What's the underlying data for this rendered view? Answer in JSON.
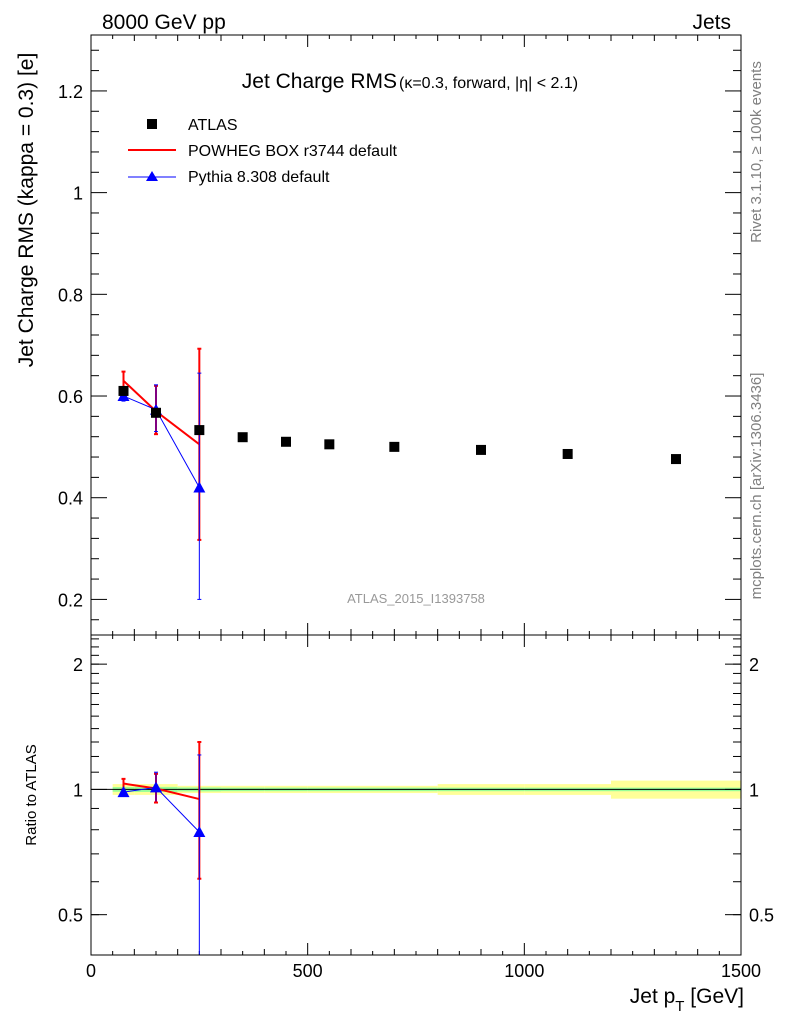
{
  "header": {
    "left": "8000 GeV pp",
    "right": "Jets"
  },
  "side_labels": {
    "rivet": "Rivet 3.1.10, ≥ 100k events",
    "mcplots": "mcplots.cern.ch [arXiv:1306.3436]"
  },
  "chart_data": [
    {
      "type": "scatter",
      "title": "Jet Charge RMS",
      "subtitle": "(κ=0.3, forward, |η| < 2.1)",
      "watermark": "ATLAS_2015_I1393758",
      "ylabel": "Jet Charge RMS (kappa = 0.3) [e]",
      "xlim": [
        0,
        1500
      ],
      "ylim": [
        0.13,
        1.31
      ],
      "yticks": [
        0.2,
        0.4,
        0.6,
        0.8,
        1,
        1.2
      ],
      "ytick_labels": [
        "0.2",
        "0.4",
        "0.6",
        "0.8",
        "1",
        "1.2"
      ],
      "legend_position": "top-left",
      "series": [
        {
          "name": "ATLAS",
          "color": "#000000",
          "marker": "square",
          "x": [
            75,
            150,
            250,
            350,
            450,
            550,
            700,
            900,
            1100,
            1350
          ],
          "y": [
            0.61,
            0.567,
            0.533,
            0.519,
            0.51,
            0.505,
            0.5,
            0.494,
            0.486,
            0.476
          ],
          "yerr": [
            0.008,
            0.008,
            0.006,
            0.005,
            0.005,
            0.005,
            0.005,
            0.005,
            0.005,
            0.005
          ]
        },
        {
          "name": "POWHEG BOX r3744 default",
          "color": "#ff0000",
          "marker": "line",
          "x": [
            75,
            150,
            250
          ],
          "y": [
            0.63,
            0.57,
            0.505
          ],
          "ylow": [
            0.612,
            0.525,
            0.317
          ],
          "yhigh": [
            0.648,
            0.62,
            0.693
          ],
          "xedges": [
            [
              50,
              100
            ],
            [
              100,
              200
            ],
            [
              200,
              250
            ]
          ]
        },
        {
          "name": "Pythia 8.308 default",
          "color": "#0000ff",
          "marker": "triangle",
          "x": [
            75,
            150,
            250
          ],
          "y": [
            0.6,
            0.573,
            0.42
          ],
          "ylow": [
            0.59,
            0.53,
            0.2
          ],
          "yhigh": [
            0.61,
            0.622,
            0.645
          ]
        }
      ]
    },
    {
      "type": "line",
      "ylabel": "Ratio to ATLAS",
      "xlabel": "Jet p_T [GeV]",
      "xlim": [
        0,
        1500
      ],
      "ylim": [
        0.4,
        2.35
      ],
      "xticks": [
        0,
        500,
        1000,
        1500
      ],
      "xtick_labels": [
        "0",
        "500",
        "1000",
        "1500"
      ],
      "yticks": [
        0.5,
        1,
        2
      ],
      "ytick_labels": [
        "0.5",
        "1",
        "2"
      ],
      "reference_band": {
        "x_edges": [
          50,
          100,
          200,
          300,
          400,
          500,
          600,
          800,
          1000,
          1200,
          1500
        ],
        "half_width_inner": [
          0.013,
          0.014,
          0.011,
          0.01,
          0.01,
          0.01,
          0.01,
          0.01,
          0.01,
          0.01
        ],
        "half_width_outer": [
          0.03,
          0.03,
          0.02,
          0.02,
          0.02,
          0.02,
          0.02,
          0.03,
          0.03,
          0.05
        ]
      },
      "series": [
        {
          "name": "POWHEG BOX r3744 default",
          "color": "#ff0000",
          "x": [
            75,
            150,
            250
          ],
          "y": [
            1.033,
            1.005,
            0.948
          ],
          "ylow": [
            1.0,
            0.93,
            0.61
          ],
          "yhigh": [
            1.06,
            1.09,
            1.3
          ],
          "xedges": [
            [
              50,
              100
            ],
            [
              100,
              200
            ],
            [
              200,
              250
            ]
          ]
        },
        {
          "name": "Pythia 8.308 default",
          "color": "#0000ff",
          "x": [
            75,
            150,
            250
          ],
          "y": [
            0.985,
            1.011,
            0.79
          ],
          "ylow": [
            0.965,
            0.935,
            0.38
          ],
          "yhigh": [
            1.0,
            1.1,
            1.21
          ]
        }
      ]
    }
  ]
}
